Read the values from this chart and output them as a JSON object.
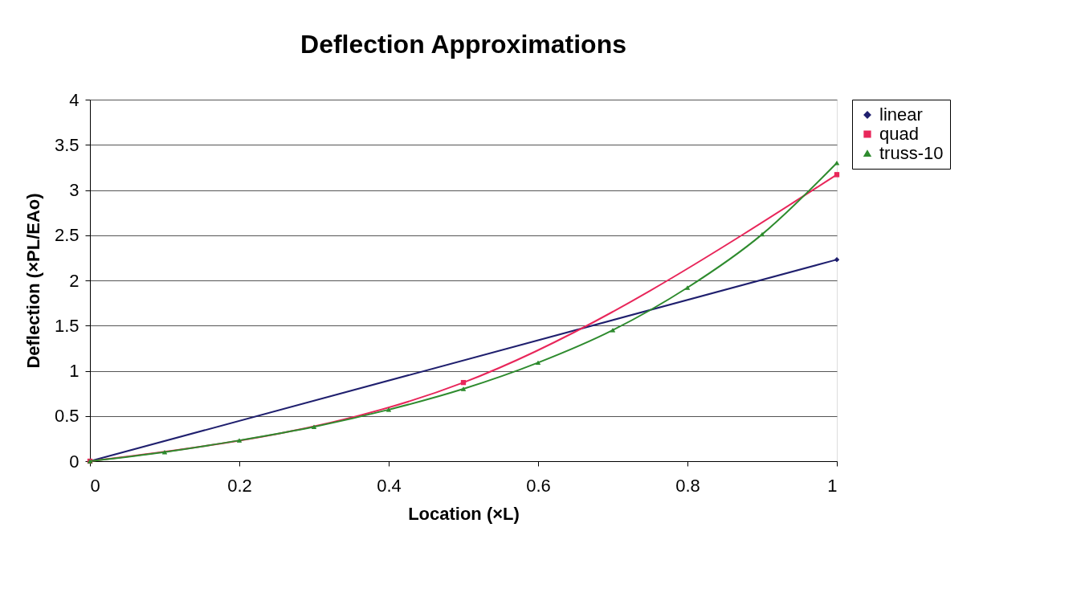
{
  "chart_data": {
    "type": "line",
    "title": "Deflection Approximations",
    "xlabel": "Location (×L)",
    "ylabel": "Deflection (×PL/EAo)",
    "xlim": [
      0,
      1
    ],
    "xticks": [
      0,
      0.2,
      0.4,
      0.6,
      0.8,
      1
    ],
    "ylim": [
      0,
      4
    ],
    "yticks": [
      0,
      0.5,
      1,
      1.5,
      2,
      2.5,
      3,
      3.5,
      4
    ],
    "grid": "y",
    "legend": "right",
    "series": [
      {
        "name": "linear",
        "color": "#1f1f6e",
        "marker": "diamond",
        "x": [
          0,
          1
        ],
        "values": [
          0,
          2.23
        ]
      },
      {
        "name": "quad",
        "color": "#e8265a",
        "marker": "square",
        "x": [
          0,
          0.5,
          1
        ],
        "values": [
          0,
          0.87,
          3.17
        ]
      },
      {
        "name": "truss-10",
        "color": "#2e8b2e",
        "marker": "triangle",
        "x": [
          0,
          0.1,
          0.2,
          0.3,
          0.4,
          0.5,
          0.6,
          0.7,
          0.8,
          0.9,
          1
        ],
        "values": [
          0,
          0.1,
          0.23,
          0.38,
          0.57,
          0.8,
          1.09,
          1.45,
          1.92,
          2.51,
          3.3
        ]
      }
    ]
  }
}
